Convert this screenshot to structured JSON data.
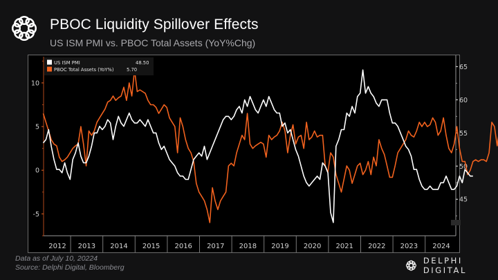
{
  "header": {
    "title": "PBOC Liquidity Spillover Effects",
    "subtitle": "US ISM PMI vs. PBOC Total Assets (YoY%Chg)",
    "logo_icon": "delphi-knot-icon"
  },
  "footer": {
    "date_note": "Data as of July 10, 20224",
    "source_note": "Source: Delphi Digital, Bloomberg",
    "brand": "DELPHI DIGITAL"
  },
  "colors": {
    "background": "#121213",
    "plot_background": "#000000",
    "ism": "#ffffff",
    "pboc": "#f2621e",
    "axis": "#9a9a9a"
  },
  "chart_data": {
    "type": "line",
    "title": "PBOC Liquidity Spillover Effects",
    "subtitle": "US ISM PMI vs. PBOC Total Assets (YoY%Chg)",
    "xlabel": "",
    "ylabel_left": "PBOC Total Assets YoY %",
    "ylabel_right": "US ISM PMI",
    "x_ticks": [
      "2012",
      "2013",
      "2014",
      "2015",
      "2016",
      "2017",
      "2018",
      "2019",
      "2020",
      "2021",
      "2022",
      "2023",
      "2024"
    ],
    "y_left_ticks": [
      10,
      5,
      0,
      -5
    ],
    "y_left_range": [
      -7.5,
      13
    ],
    "y_right_ticks": [
      65,
      60,
      55,
      50,
      45
    ],
    "y_right_range": [
      39.5,
      66.5
    ],
    "grid": false,
    "legend_position": "top-left",
    "legend": [
      {
        "name": "US ISM PMI",
        "last_value": "48.50",
        "axis": "right"
      },
      {
        "name": "PBOC Total Assets (YoY%)",
        "last_value": "5.70",
        "axis": "left"
      }
    ],
    "x_start": 2012.15,
    "x_step_months": 1,
    "series": [
      {
        "name": "PBOC Total Assets (YoY%)",
        "axis": "left",
        "values": [
          6.5,
          5.5,
          4.5,
          3.5,
          3,
          2.8,
          1.5,
          1,
          1.2,
          1.5,
          2,
          2.5,
          2.8,
          3,
          5,
          3,
          0.5,
          4.5,
          4,
          4.5,
          5.5,
          6,
          6.5,
          7,
          7.8,
          8,
          8.5,
          8,
          8.3,
          8.5,
          9.5,
          8,
          10,
          8.5,
          11.5,
          9,
          9.2,
          9,
          8.8,
          8,
          7.5,
          7.5,
          7.2,
          6.5,
          7,
          7.5,
          7.2,
          6,
          5.5,
          5,
          2,
          6,
          5,
          3.5,
          2.5,
          2,
          1,
          -1.5,
          -2.5,
          -3,
          -3.5,
          -4.5,
          -6,
          -2,
          -3.5,
          -4.5,
          -3.5,
          -3,
          -2.5,
          0.5,
          0.8,
          0.5,
          2,
          3,
          4,
          3.5,
          6.5,
          3,
          2.5,
          2.8,
          3,
          3.2,
          3,
          1.5,
          4,
          3.5,
          3.8,
          4,
          4.5,
          5.5,
          4.5,
          2,
          4,
          5.2,
          3,
          3.8,
          4,
          2.5,
          5.5,
          3.5,
          3.8,
          4.5,
          3.8,
          4,
          4,
          0.5,
          -0.2,
          2,
          1.5,
          -0.5,
          -1.5,
          -2.5,
          -1,
          0.5,
          0,
          -1.5,
          -0.5,
          0.5,
          0.8,
          -0.5,
          0,
          1,
          -0.5,
          1.5,
          0.5,
          3.5,
          2.5,
          1.8,
          0.5,
          -0.8,
          -0.8,
          0.5,
          2,
          2.5,
          3,
          3.5,
          4.5,
          4,
          3.8,
          4.5,
          5.5,
          5,
          5.5,
          5,
          5.2,
          6,
          5.5,
          4,
          4.5,
          6,
          4,
          2.5,
          2,
          3,
          5,
          2.5,
          1,
          1,
          -0.5,
          0,
          1,
          1.2,
          1,
          1.2,
          1.2,
          1,
          2,
          5.5,
          5,
          2.8,
          5,
          5.5,
          5.2,
          6,
          5.8,
          6,
          6,
          7.5,
          7,
          7.5,
          8,
          8.5,
          9,
          9.8,
          9.7,
          9.2,
          8.5,
          7.5,
          6,
          4.5,
          4.2,
          5.7
        ]
      },
      {
        "name": "US ISM PMI",
        "axis": "right",
        "values": [
          53.5,
          54,
          55.5,
          53,
          51,
          49.5,
          49.5,
          49,
          50.5,
          49,
          48,
          51,
          52,
          53.5,
          51.5,
          50.5,
          50.5,
          51.5,
          53,
          55,
          55,
          56,
          55.5,
          56,
          57,
          56.5,
          54,
          56,
          57.5,
          56.5,
          56,
          57,
          58,
          57,
          56.5,
          56.5,
          57,
          56.5,
          56,
          57,
          56,
          55,
          55,
          53.5,
          52.5,
          53,
          52,
          51,
          50.5,
          50,
          49,
          48.5,
          48.5,
          48,
          48,
          49.5,
          51,
          51.5,
          52,
          51.5,
          53,
          51,
          52,
          53,
          54,
          55,
          56,
          57,
          57.5,
          57.5,
          57,
          57.5,
          58.5,
          59,
          58,
          60,
          59,
          60.5,
          59.5,
          58.5,
          58,
          59,
          60,
          59,
          60.5,
          59.5,
          58.5,
          58,
          58,
          56,
          56.5,
          55,
          55.5,
          54,
          52.5,
          51.5,
          50,
          48.5,
          47.5,
          47,
          47.5,
          48,
          48.5,
          48,
          50.5,
          50,
          49,
          43,
          41.5,
          53,
          54,
          55.5,
          55.5,
          58,
          57.5,
          59,
          58,
          60.5,
          61,
          64.5,
          61,
          62,
          61,
          60.5,
          59.5,
          59,
          60,
          60,
          60,
          58,
          56.5,
          56.5,
          56,
          55,
          54,
          53,
          52.5,
          51.5,
          49.5,
          49.5,
          48,
          47,
          46.5,
          46.5,
          47,
          46.5,
          46.5,
          46.5,
          47.5,
          47.5,
          48.5,
          47.5,
          46.5,
          46.5,
          47,
          48.5,
          47.5,
          49.5,
          49,
          48.5,
          48.5
        ]
      }
    ]
  }
}
